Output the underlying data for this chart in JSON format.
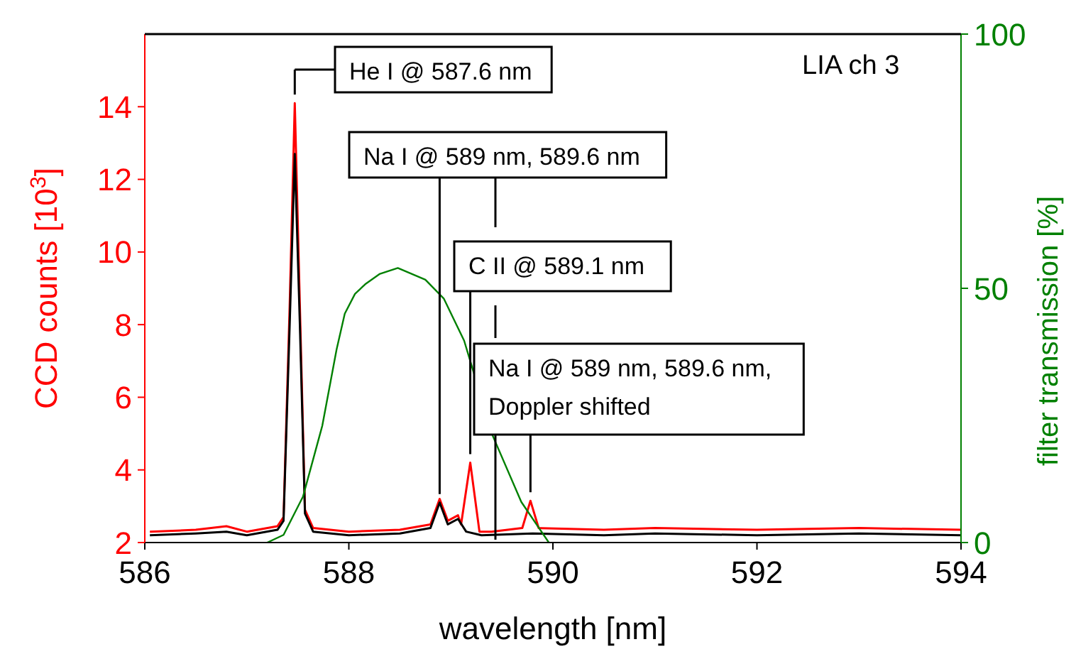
{
  "chart_data": {
    "type": "line",
    "xlabel": "wavelength [nm]",
    "ylabel": "CCD counts [10$^{3}$]",
    "y2label": "filter transmission [%]",
    "xlim": [
      586,
      594
    ],
    "xticks": [
      586,
      588,
      590,
      592,
      594
    ],
    "ylim": [
      2,
      16
    ],
    "yticks": [
      2,
      4,
      6,
      8,
      10,
      12,
      14
    ],
    "y2lim": [
      0,
      100
    ],
    "y2ticks": [
      0,
      50,
      100
    ],
    "marker": "none",
    "line_style": "solid",
    "annotations": [
      {
        "text": "He I @ 587.6 nm",
        "x": 587.47,
        "y": 14.1
      },
      {
        "text": "Na I @ 589 nm, 589.6 nm",
        "x": 588.89,
        "y": 3.1
      },
      {
        "text": "C II @ 589.1 nm",
        "x": 589.19,
        "y": 4.2
      },
      {
        "text": "Na I @ 589 nm, 589.6 nm, Doppler shifted",
        "x": 589.78,
        "y": 3.15
      },
      "LIA ch 3"
    ],
    "series": [
      {
        "color": "#ff0000",
        "x": [
          586.05,
          586.5,
          586.8,
          587.0,
          587.3,
          587.36,
          587.42,
          587.47,
          587.52,
          587.57,
          587.65,
          588.0,
          588.5,
          588.8,
          588.89,
          588.97,
          589.07,
          589.1,
          589.19,
          589.28,
          589.4,
          589.7,
          589.78,
          589.86,
          590.5,
          591,
          592,
          593,
          594
        ],
        "values": [
          2.3,
          2.35,
          2.45,
          2.3,
          2.45,
          2.7,
          8.5,
          14.1,
          8.5,
          2.9,
          2.4,
          2.3,
          2.35,
          2.5,
          3.2,
          2.6,
          2.75,
          2.5,
          4.2,
          2.3,
          2.3,
          2.4,
          3.15,
          2.4,
          2.35,
          2.4,
          2.35,
          2.4,
          2.35
        ]
      },
      {
        "color": "#000000",
        "x": [
          586.05,
          586.5,
          586.8,
          587.0,
          587.3,
          587.36,
          587.42,
          587.47,
          587.52,
          587.57,
          587.65,
          588.0,
          588.5,
          588.8,
          588.89,
          588.97,
          589.07,
          589.15,
          589.3,
          589.8,
          590.5,
          591,
          592,
          593,
          594
        ],
        "values": [
          2.2,
          2.25,
          2.3,
          2.2,
          2.35,
          2.6,
          8,
          12.7,
          8,
          2.8,
          2.3,
          2.2,
          2.25,
          2.4,
          3.1,
          2.5,
          2.65,
          2.3,
          2.2,
          2.25,
          2.2,
          2.25,
          2.2,
          2.25,
          2.2
        ]
      },
      {
        "color": "#008000",
        "axis": "y2",
        "x": [
          587.2,
          587.36,
          587.55,
          587.74,
          587.88,
          587.96,
          588.06,
          588.16,
          588.3,
          588.48,
          588.75,
          588.93,
          589.13,
          589.41,
          589.69,
          589.96
        ],
        "values": [
          0,
          1.5,
          9,
          23,
          38,
          45,
          48.9,
          50.8,
          52.8,
          54,
          51.7,
          48,
          39.7,
          21,
          8,
          0
        ]
      }
    ]
  }
}
